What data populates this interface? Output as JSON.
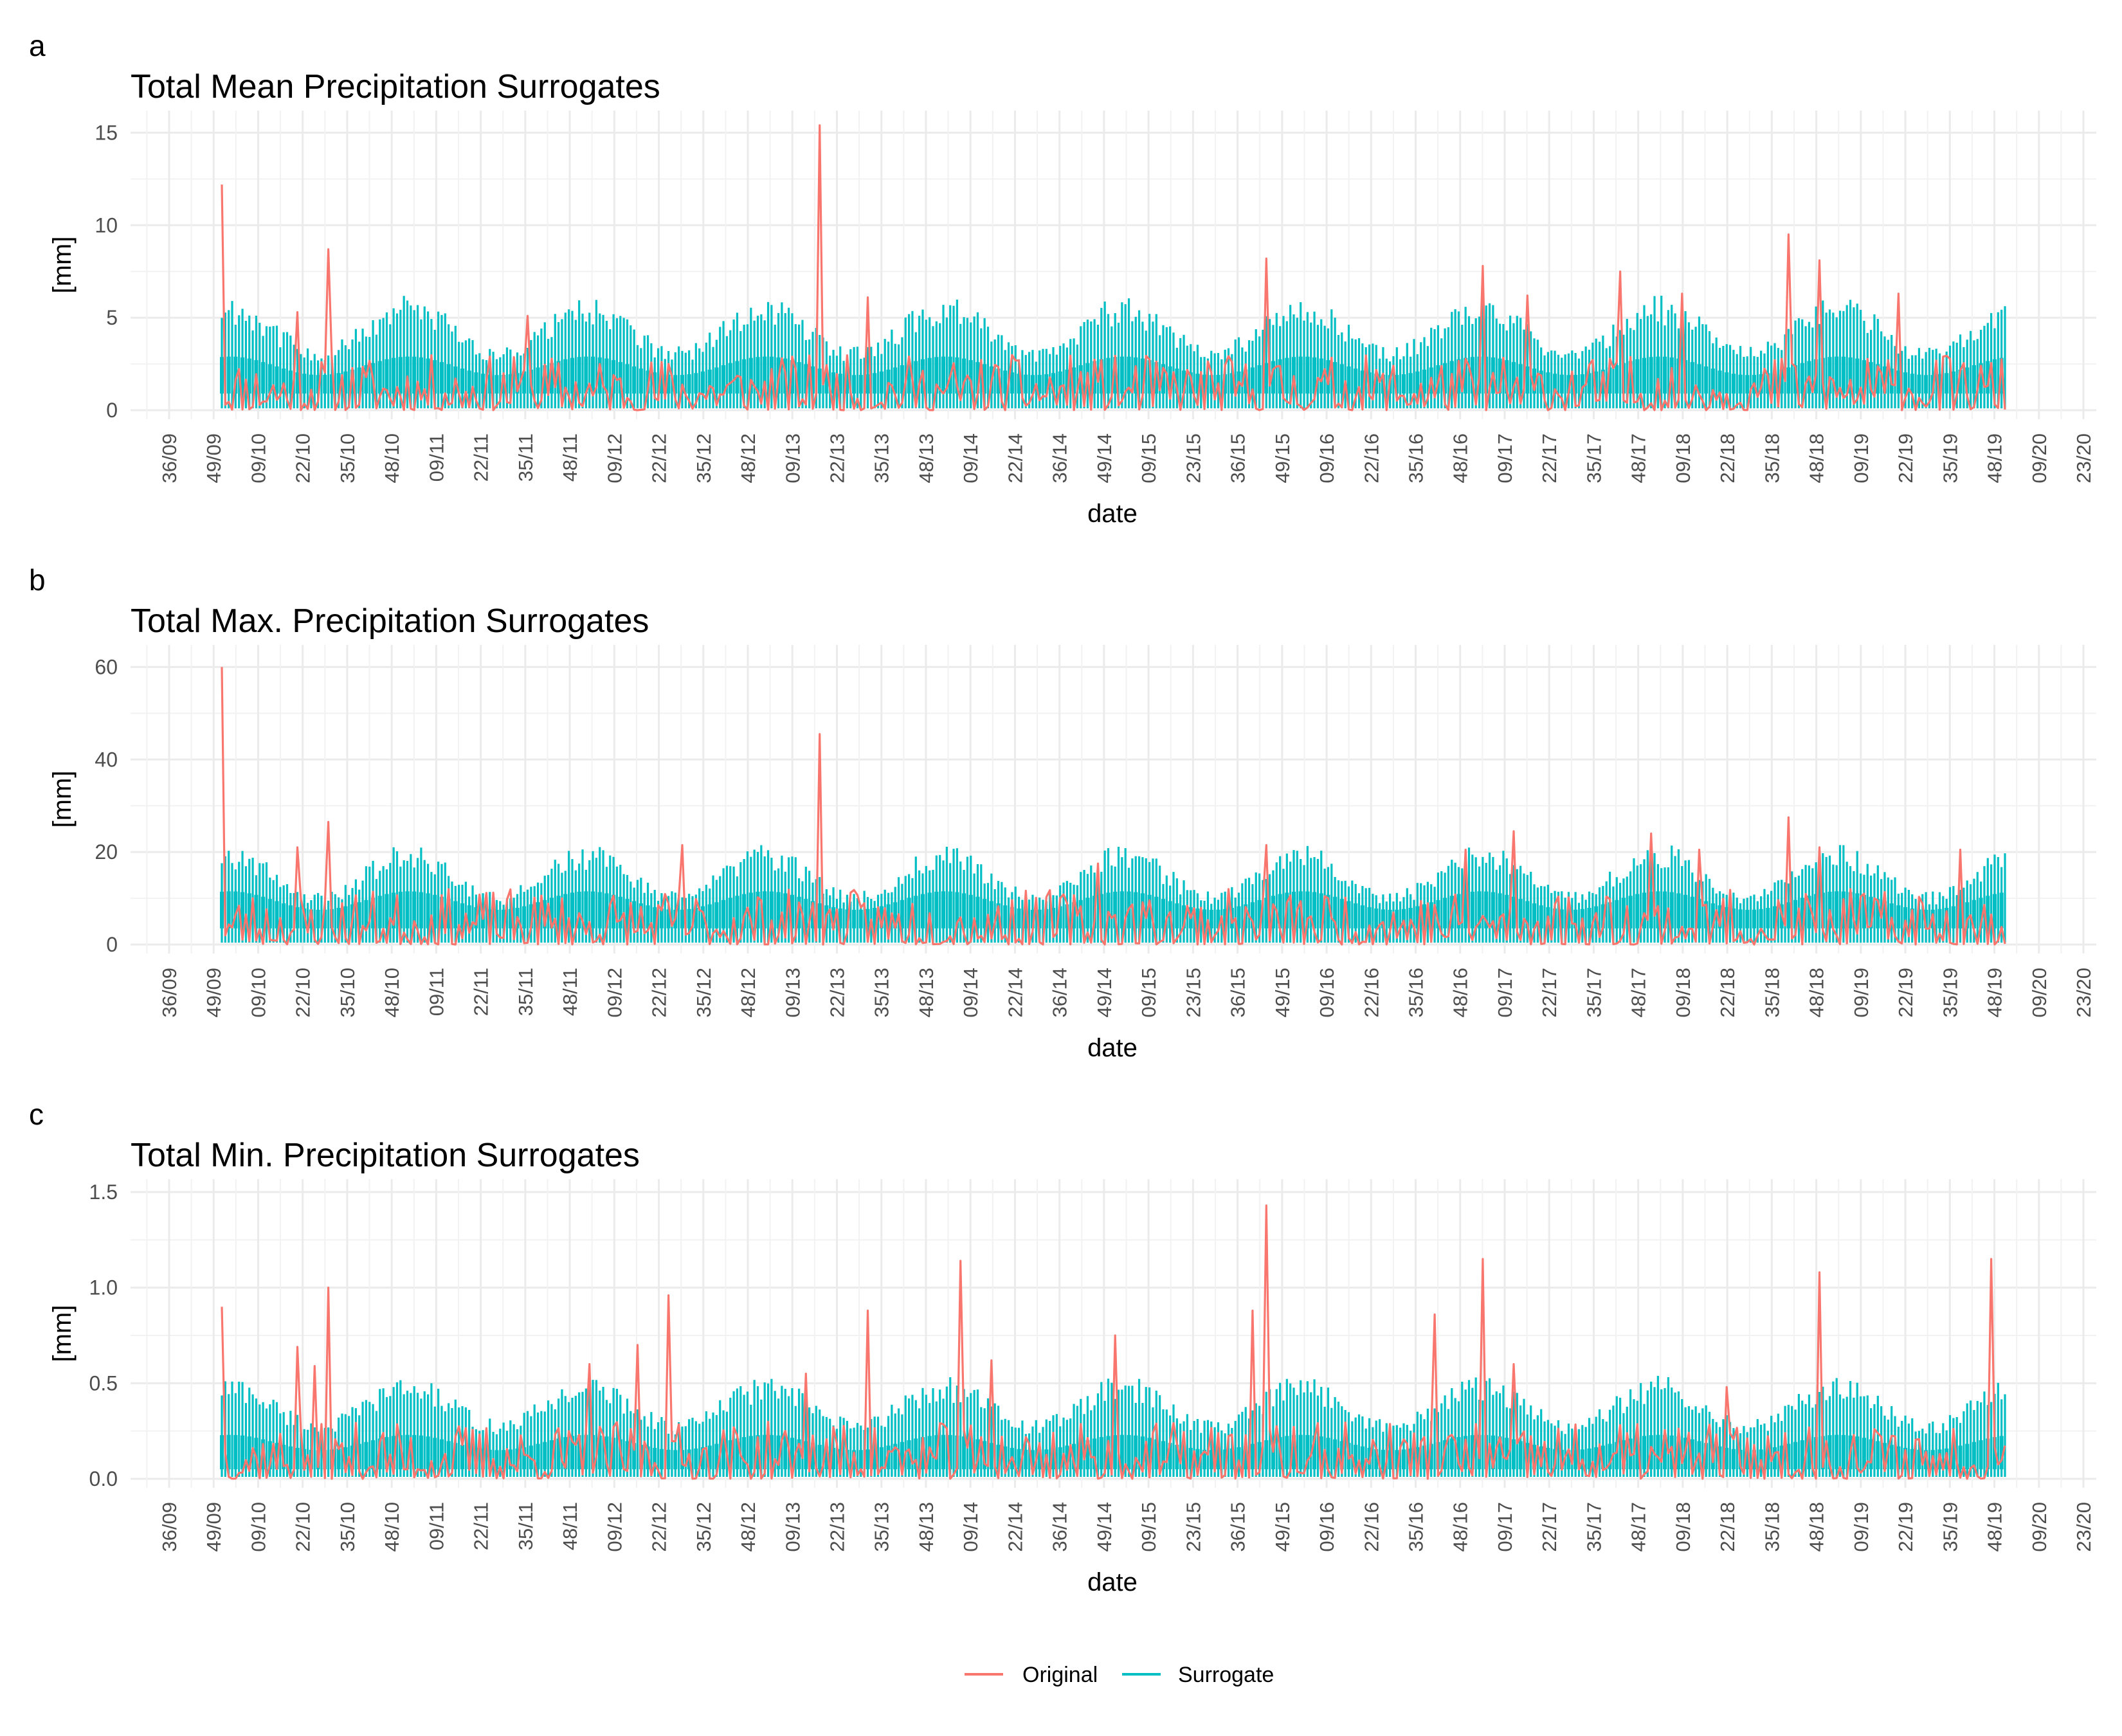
{
  "colors": {
    "original": "#F8766D",
    "surrogate": "#00BFC4",
    "grid": "#EBEBEB",
    "tick_text": "#4D4D4D"
  },
  "x_axis": {
    "label": "date",
    "ticks": [
      "36/09",
      "49/09",
      "09/10",
      "22/10",
      "35/10",
      "48/10",
      "09/11",
      "22/11",
      "35/11",
      "48/11",
      "09/12",
      "22/12",
      "35/12",
      "48/12",
      "09/13",
      "22/13",
      "35/13",
      "48/13",
      "09/14",
      "22/14",
      "36/14",
      "49/14",
      "09/15",
      "23/15",
      "36/15",
      "49/15",
      "09/16",
      "22/16",
      "35/16",
      "48/16",
      "09/17",
      "22/17",
      "35/17",
      "48/17",
      "09/18",
      "22/18",
      "35/18",
      "48/18",
      "09/19",
      "22/19",
      "35/19",
      "48/19",
      "09/20",
      "23/20"
    ]
  },
  "legend": {
    "position": "bottom",
    "items": [
      {
        "label": "Original",
        "color": "#F8766D"
      },
      {
        "label": "Surrogate",
        "color": "#00BFC4"
      }
    ]
  },
  "chart_data": [
    {
      "panel": "a",
      "type": "line",
      "title": "Total Mean Precipitation Surrogates",
      "xlabel": "date",
      "ylabel": "[mm]",
      "ylim": [
        0,
        15.5
      ],
      "yticks": [
        "0",
        "5",
        "10",
        "15"
      ],
      "grid": true,
      "series": [
        {
          "name": "Original",
          "type": "line",
          "color": "#F8766D",
          "x_start": "2009-12-01",
          "x_end": "2019-12-01",
          "points": 520,
          "seed": 11,
          "typical_max": 3.0,
          "peaks": [
            [
              0.0,
              12.2
            ],
            [
              0.07,
              8.7
            ],
            [
              0.05,
              5.3
            ],
            [
              0.2,
              5.1
            ],
            [
              0.39,
              15.4
            ],
            [
              0.42,
              6.1
            ],
            [
              0.68,
              8.2
            ],
            [
              0.82,
              7.8
            ],
            [
              0.85,
              6.2
            ],
            [
              0.91,
              7.5
            ],
            [
              0.95,
              6.3
            ],
            [
              1.02,
              9.5
            ],
            [
              1.04,
              8.1
            ],
            [
              1.09,
              6.3
            ]
          ]
        },
        {
          "name": "Surrogate",
          "type": "range",
          "color": "#00BFC4",
          "outer_low": 0.1,
          "outer_high_base": 3.0,
          "outer_high_amp": 2.4,
          "inner_low": 0.9,
          "inner_high_base": 1.9,
          "inner_high_amp": 1.0
        }
      ]
    },
    {
      "panel": "b",
      "type": "line",
      "title": "Total Max. Precipitation Surrogates",
      "xlabel": "date",
      "ylabel": "[mm]",
      "ylim": [
        0,
        62
      ],
      "yticks": [
        "0",
        "20",
        "40",
        "60"
      ],
      "grid": true,
      "series": [
        {
          "name": "Original",
          "type": "line",
          "color": "#F8766D",
          "x_start": "2009-12-01",
          "x_end": "2019-12-01",
          "points": 520,
          "seed": 23,
          "typical_max": 12,
          "peaks": [
            [
              0.0,
              60
            ],
            [
              0.05,
              21
            ],
            [
              0.07,
              26.5
            ],
            [
              0.3,
              21.5
            ],
            [
              0.39,
              45.5
            ],
            [
              0.57,
              17.5
            ],
            [
              0.68,
              21.5
            ],
            [
              0.81,
              20.5
            ],
            [
              0.84,
              24.5
            ],
            [
              0.93,
              24
            ],
            [
              0.96,
              20.5
            ],
            [
              1.02,
              27.5
            ],
            [
              1.04,
              21
            ],
            [
              1.13,
              20.5
            ]
          ]
        },
        {
          "name": "Surrogate",
          "type": "range",
          "color": "#00BFC4",
          "outer_low": 0.4,
          "outer_high_base": 10,
          "outer_high_amp": 9,
          "inner_low": 3.5,
          "inner_high_base": 7.5,
          "inner_high_amp": 4
        }
      ]
    },
    {
      "panel": "c",
      "type": "line",
      "title": "Total Min. Precipitation Surrogates",
      "xlabel": "date",
      "ylabel": "[mm]",
      "ylim": [
        0,
        1.5
      ],
      "yticks": [
        "0.0",
        "0.5",
        "1.0",
        "1.5"
      ],
      "grid": true,
      "series": [
        {
          "name": "Original",
          "type": "line",
          "color": "#F8766D",
          "x_start": "2009-12-01",
          "x_end": "2019-12-01",
          "points": 520,
          "seed": 37,
          "typical_max": 0.3,
          "peaks": [
            [
              0.0,
              0.9
            ],
            [
              0.05,
              0.69
            ],
            [
              0.06,
              0.59
            ],
            [
              0.07,
              1.0
            ],
            [
              0.24,
              0.6
            ],
            [
              0.27,
              0.7
            ],
            [
              0.29,
              0.96
            ],
            [
              0.38,
              0.55
            ],
            [
              0.42,
              0.88
            ],
            [
              0.48,
              1.14
            ],
            [
              0.5,
              0.62
            ],
            [
              0.58,
              0.75
            ],
            [
              0.67,
              0.88
            ],
            [
              0.68,
              1.43
            ],
            [
              0.79,
              0.86
            ],
            [
              0.82,
              1.15
            ],
            [
              0.84,
              0.6
            ],
            [
              0.98,
              0.48
            ],
            [
              1.04,
              1.08
            ],
            [
              1.15,
              1.15
            ]
          ]
        },
        {
          "name": "Surrogate",
          "type": "range",
          "color": "#00BFC4",
          "outer_low": 0.01,
          "outer_high_base": 0.27,
          "outer_high_amp": 0.2,
          "inner_low": 0.05,
          "inner_high_base": 0.15,
          "inner_high_amp": 0.08
        }
      ]
    }
  ]
}
